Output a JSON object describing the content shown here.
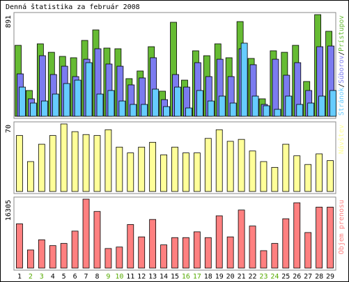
{
  "title": "Denná štatistika za február 2008",
  "legend_separator": "/",
  "chart_data": [
    {
      "type": "bar",
      "ylim": [
        0,
        891
      ],
      "yticks": [
        891
      ],
      "series": [
        {
          "name": "Prístupov",
          "color": "#66bb33",
          "values": [
            622,
            226,
            635,
            561,
            525,
            513,
            665,
            757,
            598,
            592,
            330,
            397,
            610,
            220,
            824,
            317,
            574,
            531,
            635,
            513,
            830,
            507,
            153,
            574,
            561,
            622,
            305,
            891,
            745
          ]
        },
        {
          "name": "Súborov",
          "color": "#7b7bf0",
          "values": [
            372,
            153,
            531,
            366,
            439,
            348,
            500,
            592,
            458,
            439,
            275,
            336,
            513,
            146,
            366,
            256,
            470,
            348,
            500,
            348,
            592,
            452,
            104,
            500,
            360,
            470,
            226,
            610,
            616
          ]
        },
        {
          "name": "Stránok",
          "color": "#66ccff",
          "values": [
            256,
            116,
            134,
            195,
            287,
            317,
            470,
            195,
            226,
            134,
            104,
            104,
            238,
            85,
            256,
            73,
            226,
            134,
            177,
            116,
            641,
            177,
            92,
            61,
            177,
            104,
            116,
            177,
            226
          ]
        }
      ]
    },
    {
      "type": "bar",
      "ylim": [
        0,
        70
      ],
      "yticks": [
        70
      ],
      "series": [
        {
          "name": "Návštev",
          "color": "#ffff99",
          "values": [
            58,
            31,
            49,
            58,
            70,
            62,
            59,
            58,
            64,
            46,
            40,
            46,
            51,
            38,
            46,
            40,
            40,
            55,
            64,
            52,
            54,
            42,
            31,
            25,
            49,
            37,
            28,
            39,
            32
          ]
        }
      ]
    },
    {
      "type": "bar",
      "ylim": [
        0,
        16305
      ],
      "yticks": [
        16305
      ],
      "categories": [
        "1",
        "2",
        "3",
        "4",
        "5",
        "6",
        "7",
        "8",
        "9",
        "10",
        "11",
        "12",
        "13",
        "14",
        "15",
        "16",
        "17",
        "18",
        "19",
        "20",
        "21",
        "22",
        "23",
        "24",
        "25",
        "26",
        "27",
        "28",
        "29"
      ],
      "category_colors": [
        "#000000",
        "#55aa00",
        "#55aa00",
        "#000000",
        "#000000",
        "#000000",
        "#000000",
        "#000000",
        "#55aa00",
        "#55aa00",
        "#000000",
        "#000000",
        "#000000",
        "#000000",
        "#000000",
        "#55aa00",
        "#55aa00",
        "#000000",
        "#000000",
        "#000000",
        "#000000",
        "#000000",
        "#55aa00",
        "#55aa00",
        "#000000",
        "#000000",
        "#000000",
        "#000000",
        "#000000"
      ],
      "series": [
        {
          "name": "Objem prenosu",
          "color": "#ff8080",
          "values": [
            10470,
            4290,
            6690,
            5320,
            5830,
            8750,
            16305,
            13390,
            4630,
            4980,
            10300,
            7380,
            11500,
            5490,
            7210,
            7210,
            8580,
            7210,
            12360,
            7380,
            13730,
            9950,
            4120,
            5830,
            11670,
            15450,
            8410,
            14420,
            14420
          ]
        }
      ]
    }
  ]
}
